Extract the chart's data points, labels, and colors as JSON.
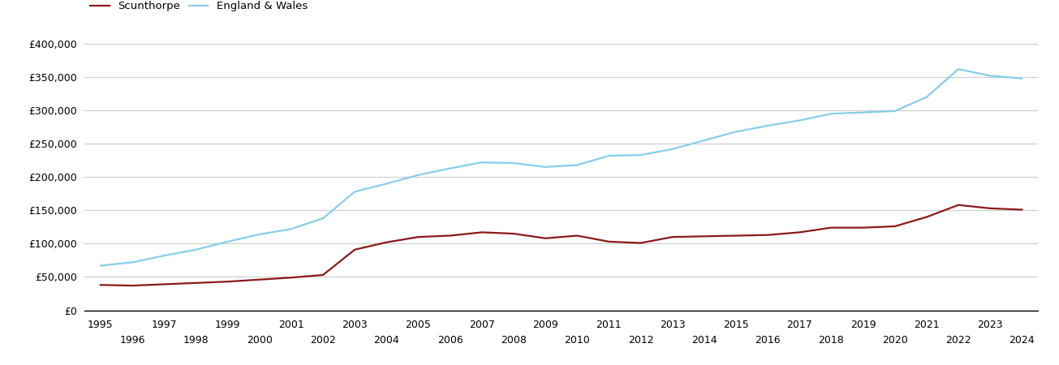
{
  "scunthorpe_years": [
    1995,
    1996,
    1997,
    1998,
    1999,
    2000,
    2001,
    2002,
    2003,
    2004,
    2005,
    2006,
    2007,
    2008,
    2009,
    2010,
    2011,
    2012,
    2013,
    2014,
    2015,
    2016,
    2017,
    2018,
    2019,
    2020,
    2021,
    2022,
    2023,
    2024
  ],
  "scunthorpe_values": [
    38000,
    37000,
    39000,
    41000,
    43000,
    46000,
    49000,
    53000,
    91000,
    102000,
    110000,
    112000,
    117000,
    115000,
    108000,
    112000,
    103000,
    101000,
    110000,
    111000,
    112000,
    113000,
    117000,
    124000,
    124000,
    126000,
    140000,
    158000,
    153000,
    151000
  ],
  "england_years": [
    1995,
    1996,
    1997,
    1998,
    1999,
    2000,
    2001,
    2002,
    2003,
    2004,
    2005,
    2006,
    2007,
    2008,
    2009,
    2010,
    2011,
    2012,
    2013,
    2014,
    2015,
    2016,
    2017,
    2018,
    2019,
    2020,
    2021,
    2022,
    2023,
    2024
  ],
  "england_values": [
    67000,
    72000,
    82000,
    91000,
    103000,
    114000,
    122000,
    138000,
    178000,
    190000,
    203000,
    213000,
    222000,
    221000,
    215000,
    218000,
    232000,
    233000,
    242000,
    255000,
    268000,
    277000,
    285000,
    295000,
    297000,
    299000,
    320000,
    362000,
    352000,
    348000
  ],
  "scunthorpe_color": "#8B1A1A",
  "england_color": "#87CEEB",
  "scunthorpe_label": "Scunthorpe",
  "england_label": "England & Wales",
  "ylim": [
    0,
    400000
  ],
  "yticks": [
    0,
    50000,
    100000,
    150000,
    200000,
    250000,
    300000,
    350000,
    400000
  ],
  "xticks_odd": [
    1995,
    1997,
    1999,
    2001,
    2003,
    2005,
    2007,
    2009,
    2011,
    2013,
    2015,
    2017,
    2019,
    2021,
    2023
  ],
  "xticks_even": [
    1996,
    1998,
    2000,
    2002,
    2004,
    2006,
    2008,
    2010,
    2012,
    2014,
    2016,
    2018,
    2020,
    2022,
    2024
  ],
  "background_color": "#ffffff",
  "grid_color": "#cccccc",
  "line_width": 1.6
}
